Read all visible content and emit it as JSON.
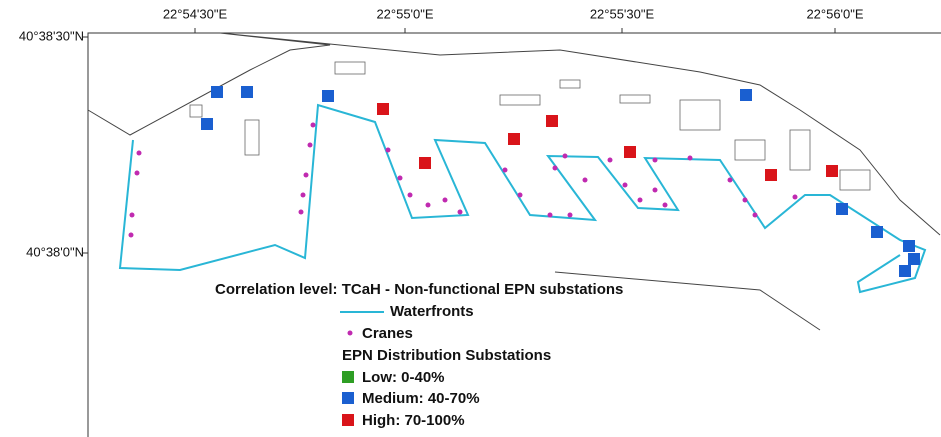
{
  "map": {
    "x_ticks": [
      "22°54'30\"E",
      "22°55'0\"E",
      "22°55'30\"E",
      "22°56'0\"E"
    ],
    "y_ticks": [
      "40°38'30\"N",
      "40°38'0\"N"
    ],
    "legend": {
      "title": "Correlation level: TCaH - Non-functional EPN substations",
      "waterfronts": "Waterfronts",
      "cranes": "Cranes",
      "substations_title": "EPN Distribution Substations",
      "low": "Low: 0-40%",
      "medium": "Medium: 40-70%",
      "high": "High: 70-100%"
    }
  }
}
